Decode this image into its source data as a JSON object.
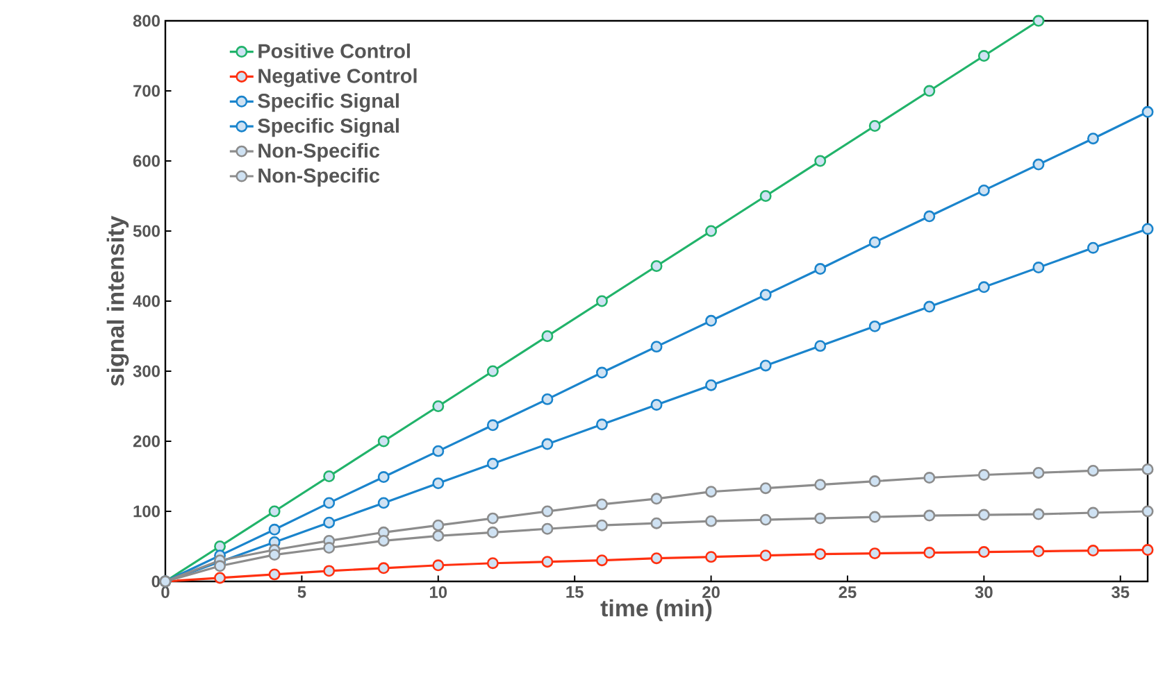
{
  "chart_data": {
    "type": "line",
    "xlabel": "time (min)",
    "ylabel": "signal intensity",
    "x": [
      0,
      2,
      4,
      6,
      8,
      10,
      12,
      14,
      16,
      18,
      20,
      22,
      24,
      26,
      28,
      30,
      32,
      34,
      36
    ],
    "xlim": [
      0,
      36
    ],
    "ylim": [
      0,
      800
    ],
    "xticks": [
      0,
      5,
      10,
      15,
      20,
      25,
      30,
      35
    ],
    "yticks": [
      0,
      100,
      200,
      300,
      400,
      500,
      600,
      700,
      800
    ],
    "legend": "top left",
    "marker": "circle",
    "grid": false,
    "series": [
      {
        "name": "Positive Control",
        "color": "#21b36a",
        "x": [
          0,
          2,
          4,
          6,
          8,
          10,
          12,
          14,
          16,
          18,
          20,
          22,
          24,
          26,
          28,
          30,
          32
        ],
        "values": [
          0,
          50,
          100,
          150,
          200,
          250,
          300,
          350,
          400,
          450,
          500,
          550,
          600,
          650,
          700,
          750,
          800
        ]
      },
      {
        "name": "Negative Control",
        "color": "#ff3010",
        "values": [
          0,
          5,
          10,
          15,
          19,
          23,
          26,
          28,
          30,
          33,
          35,
          37,
          39,
          40,
          41,
          42,
          43,
          44,
          45
        ]
      },
      {
        "name": "Specific Signal",
        "color": "#1a84cc",
        "values": [
          0,
          37,
          74,
          112,
          149,
          186,
          223,
          260,
          298,
          335,
          372,
          409,
          446,
          484,
          521,
          558,
          595,
          632,
          670
        ]
      },
      {
        "name": "Specific Signal",
        "color": "#1a84cc",
        "values": [
          0,
          28,
          56,
          84,
          112,
          140,
          168,
          196,
          224,
          252,
          280,
          308,
          336,
          364,
          392,
          420,
          448,
          476,
          503
        ]
      },
      {
        "name": "Non-Specific",
        "color": "#8c8c8c",
        "values": [
          0,
          30,
          45,
          58,
          70,
          80,
          90,
          100,
          110,
          118,
          128,
          133,
          138,
          143,
          148,
          152,
          155,
          158,
          160
        ]
      },
      {
        "name": "Non-Specific",
        "color": "#8c8c8c",
        "values": [
          0,
          22,
          38,
          48,
          58,
          65,
          70,
          75,
          80,
          83,
          86,
          88,
          90,
          92,
          94,
          95,
          96,
          98,
          100
        ]
      }
    ]
  }
}
